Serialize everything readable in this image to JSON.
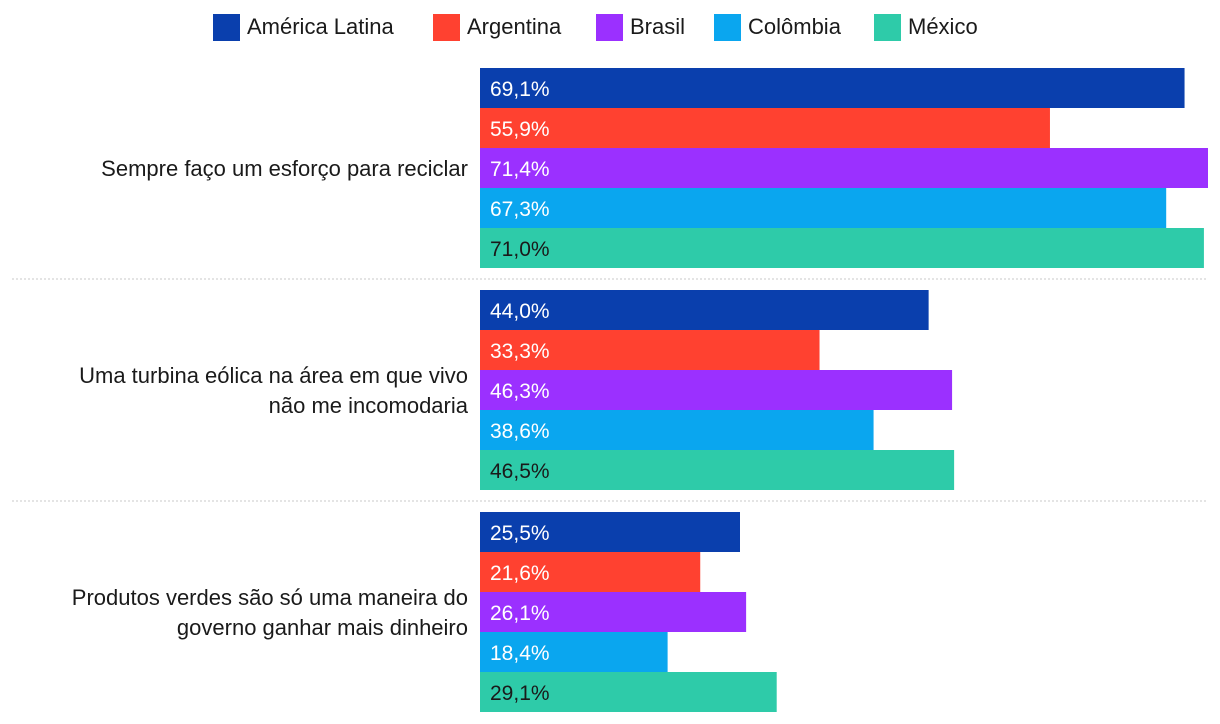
{
  "chart_data": {
    "type": "bar",
    "orientation": "horizontal",
    "legend_position": "top",
    "categories": [
      [
        "Sempre faço um esforço para reciclar"
      ],
      [
        "Uma turbina eólica na área em que vivo",
        "não me incomodaria"
      ],
      [
        "Produtos verdes são só uma maneira do",
        "governo ganhar mais dinheiro"
      ]
    ],
    "series": [
      {
        "name": "América Latina",
        "color": "#0a3fad",
        "label_color": "#ffffff",
        "values": [
          69.1,
          44.0,
          25.5
        ],
        "labels": [
          "69,1%",
          "44,0%",
          "25,5%"
        ]
      },
      {
        "name": "Argentina",
        "color": "#ff4130",
        "label_color": "#ffffff",
        "values": [
          55.9,
          33.3,
          21.6
        ],
        "labels": [
          "55,9%",
          "33,3%",
          "21,6%"
        ]
      },
      {
        "name": "Brasil",
        "color": "#9b30ff",
        "label_color": "#ffffff",
        "values": [
          71.4,
          46.3,
          26.1
        ],
        "labels": [
          "71,4%",
          "46,3%",
          "26,1%"
        ]
      },
      {
        "name": "Colômbia",
        "color": "#0aa6ef",
        "label_color": "#ffffff",
        "values": [
          67.3,
          38.6,
          18.4
        ],
        "labels": [
          "67,3%",
          "38,6%",
          "18,4%"
        ]
      },
      {
        "name": "México",
        "color": "#2ecba9",
        "label_color": "#1a1a1a",
        "values": [
          71.0,
          46.5,
          29.1
        ],
        "labels": [
          "71,0%",
          "46,5%",
          "29,1%"
        ]
      }
    ],
    "xlim": [
      0,
      71.4
    ]
  }
}
